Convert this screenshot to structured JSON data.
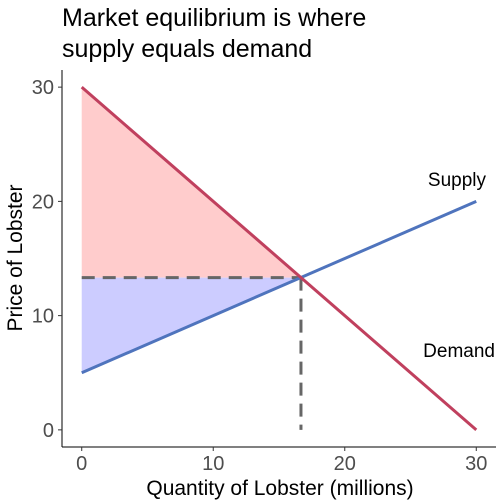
{
  "chart_data": {
    "type": "line",
    "title_line1": "Market equilibrium is where",
    "title_line2": "supply equals demand",
    "xlabel": "Quantity of Lobster (millions)",
    "ylabel": "Price of Lobster",
    "xlim": [
      -1.5,
      31.5
    ],
    "ylim": [
      -1.5,
      31.5
    ],
    "x_ticks": [
      0,
      10,
      20,
      30
    ],
    "y_ticks": [
      0,
      10,
      20,
      30
    ],
    "x_tick_labels": [
      "0",
      "10",
      "20",
      "30"
    ],
    "y_tick_labels": [
      "0",
      "10",
      "20",
      "30"
    ],
    "grid": false,
    "series": [
      {
        "name": "Supply",
        "x": [
          0,
          30
        ],
        "y": [
          5,
          20
        ],
        "color": "#4f74bd"
      },
      {
        "name": "Demand",
        "x": [
          0,
          30
        ],
        "y": [
          30,
          0
        ],
        "color": "#c0405e"
      }
    ],
    "equilibrium": {
      "x": 16.67,
      "y": 13.33
    },
    "consumer_surplus_color": "#ffcccc",
    "producer_surplus_color": "#ccccff",
    "guide_color": "#666666"
  }
}
